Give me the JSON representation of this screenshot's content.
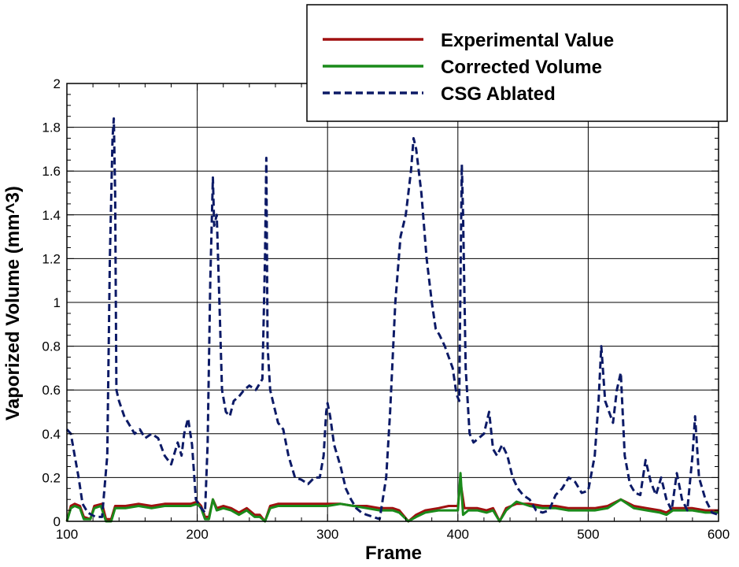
{
  "chart_data": {
    "type": "line",
    "title": "",
    "xlabel": "Frame",
    "ylabel": "Vaporized Volume (mm^3)",
    "xlim": [
      100,
      600
    ],
    "ylim": [
      0,
      2
    ],
    "xticks": [
      100,
      200,
      300,
      400,
      500,
      600
    ],
    "yticks": [
      0,
      0.2,
      0.4,
      0.6,
      0.8,
      1,
      1.2,
      1.4,
      1.6,
      1.8,
      2
    ],
    "xtick_labels": [
      "100",
      "200",
      "300",
      "400",
      "500",
      "600"
    ],
    "ytick_labels": [
      "0",
      "0.2",
      "0.4",
      "0.6",
      "0.8",
      "1",
      "1.2",
      "1.4",
      "1.6",
      "1.8",
      "2"
    ],
    "grid": {
      "x": true,
      "y": true
    },
    "legend_position": "top-right",
    "series": [
      {
        "name": "Experimental Value",
        "color": "#a01010",
        "style": "solid",
        "points": [
          [
            100,
            0
          ],
          [
            103,
            0.07
          ],
          [
            106,
            0.08
          ],
          [
            110,
            0.07
          ],
          [
            113,
            0.02
          ],
          [
            118,
            0.01
          ],
          [
            121,
            0.07
          ],
          [
            127,
            0.08
          ],
          [
            130,
            0.01
          ],
          [
            134,
            0.01
          ],
          [
            137,
            0.07
          ],
          [
            145,
            0.07
          ],
          [
            155,
            0.08
          ],
          [
            165,
            0.07
          ],
          [
            175,
            0.08
          ],
          [
            185,
            0.08
          ],
          [
            195,
            0.08
          ],
          [
            200,
            0.09
          ],
          [
            203,
            0.07
          ],
          [
            206,
            0.02
          ],
          [
            209,
            0.02
          ],
          [
            212,
            0.1
          ],
          [
            215,
            0.06
          ],
          [
            220,
            0.07
          ],
          [
            226,
            0.06
          ],
          [
            232,
            0.04
          ],
          [
            238,
            0.06
          ],
          [
            244,
            0.03
          ],
          [
            248,
            0.03
          ],
          [
            252,
            0.0
          ],
          [
            256,
            0.07
          ],
          [
            262,
            0.08
          ],
          [
            275,
            0.08
          ],
          [
            290,
            0.08
          ],
          [
            300,
            0.08
          ],
          [
            310,
            0.08
          ],
          [
            320,
            0.07
          ],
          [
            330,
            0.07
          ],
          [
            340,
            0.06
          ],
          [
            350,
            0.06
          ],
          [
            355,
            0.05
          ],
          [
            362,
            0.0
          ],
          [
            368,
            0.03
          ],
          [
            375,
            0.05
          ],
          [
            385,
            0.06
          ],
          [
            393,
            0.07
          ],
          [
            400,
            0.07
          ],
          [
            402,
            0.18
          ],
          [
            405,
            0.06
          ],
          [
            415,
            0.06
          ],
          [
            422,
            0.05
          ],
          [
            427,
            0.06
          ],
          [
            432,
            0.0
          ],
          [
            437,
            0.06
          ],
          [
            445,
            0.08
          ],
          [
            455,
            0.08
          ],
          [
            465,
            0.07
          ],
          [
            475,
            0.07
          ],
          [
            485,
            0.06
          ],
          [
            495,
            0.06
          ],
          [
            505,
            0.06
          ],
          [
            515,
            0.07
          ],
          [
            525,
            0.1
          ],
          [
            535,
            0.07
          ],
          [
            545,
            0.06
          ],
          [
            555,
            0.05
          ],
          [
            560,
            0.04
          ],
          [
            565,
            0.06
          ],
          [
            580,
            0.06
          ],
          [
            590,
            0.05
          ],
          [
            600,
            0.05
          ]
        ]
      },
      {
        "name": "Corrected Volume",
        "color": "#1a8a1a",
        "style": "solid",
        "points": [
          [
            100,
            0
          ],
          [
            103,
            0.06
          ],
          [
            106,
            0.07
          ],
          [
            110,
            0.06
          ],
          [
            113,
            0.01
          ],
          [
            118,
            0.01
          ],
          [
            121,
            0.06
          ],
          [
            126,
            0.07
          ],
          [
            130,
            0.0
          ],
          [
            134,
            0.0
          ],
          [
            137,
            0.06
          ],
          [
            145,
            0.06
          ],
          [
            155,
            0.07
          ],
          [
            165,
            0.06
          ],
          [
            175,
            0.07
          ],
          [
            185,
            0.07
          ],
          [
            195,
            0.07
          ],
          [
            200,
            0.08
          ],
          [
            203,
            0.06
          ],
          [
            206,
            0.01
          ],
          [
            209,
            0.01
          ],
          [
            212,
            0.1
          ],
          [
            215,
            0.05
          ],
          [
            220,
            0.06
          ],
          [
            226,
            0.05
          ],
          [
            232,
            0.03
          ],
          [
            238,
            0.05
          ],
          [
            244,
            0.02
          ],
          [
            248,
            0.02
          ],
          [
            252,
            0.0
          ],
          [
            256,
            0.06
          ],
          [
            262,
            0.07
          ],
          [
            275,
            0.07
          ],
          [
            290,
            0.07
          ],
          [
            300,
            0.07
          ],
          [
            310,
            0.08
          ],
          [
            320,
            0.07
          ],
          [
            330,
            0.06
          ],
          [
            340,
            0.05
          ],
          [
            350,
            0.05
          ],
          [
            355,
            0.04
          ],
          [
            362,
            0.0
          ],
          [
            368,
            0.02
          ],
          [
            375,
            0.04
          ],
          [
            385,
            0.05
          ],
          [
            393,
            0.05
          ],
          [
            400,
            0.05
          ],
          [
            402,
            0.22
          ],
          [
            404,
            0.03
          ],
          [
            408,
            0.05
          ],
          [
            415,
            0.05
          ],
          [
            422,
            0.04
          ],
          [
            427,
            0.05
          ],
          [
            432,
            0.0
          ],
          [
            437,
            0.05
          ],
          [
            445,
            0.09
          ],
          [
            455,
            0.07
          ],
          [
            465,
            0.06
          ],
          [
            475,
            0.06
          ],
          [
            485,
            0.05
          ],
          [
            495,
            0.05
          ],
          [
            505,
            0.05
          ],
          [
            515,
            0.06
          ],
          [
            525,
            0.1
          ],
          [
            535,
            0.06
          ],
          [
            545,
            0.05
          ],
          [
            555,
            0.04
          ],
          [
            560,
            0.03
          ],
          [
            565,
            0.05
          ],
          [
            580,
            0.05
          ],
          [
            590,
            0.04
          ],
          [
            600,
            0.04
          ]
        ]
      },
      {
        "name": "CSG Ablated",
        "color": "#0c1a66",
        "style": "dashed",
        "points": [
          [
            100,
            0.42
          ],
          [
            103,
            0.4
          ],
          [
            106,
            0.3
          ],
          [
            109,
            0.2
          ],
          [
            112,
            0.08
          ],
          [
            116,
            0.04
          ],
          [
            122,
            0.02
          ],
          [
            127,
            0.02
          ],
          [
            131,
            0.3
          ],
          [
            133,
            1.2
          ],
          [
            135,
            1.75
          ],
          [
            136,
            1.84
          ],
          [
            137,
            1.5
          ],
          [
            138,
            0.6
          ],
          [
            140,
            0.55
          ],
          [
            144,
            0.48
          ],
          [
            148,
            0.44
          ],
          [
            152,
            0.4
          ],
          [
            156,
            0.42
          ],
          [
            160,
            0.38
          ],
          [
            165,
            0.4
          ],
          [
            170,
            0.38
          ],
          [
            175,
            0.3
          ],
          [
            180,
            0.26
          ],
          [
            185,
            0.36
          ],
          [
            188,
            0.3
          ],
          [
            190,
            0.4
          ],
          [
            193,
            0.47
          ],
          [
            196,
            0.35
          ],
          [
            199,
            0.1
          ],
          [
            203,
            0.06
          ],
          [
            206,
            0.04
          ],
          [
            208,
            0.35
          ],
          [
            210,
            1.1
          ],
          [
            212,
            1.57
          ],
          [
            213,
            1.35
          ],
          [
            215,
            1.4
          ],
          [
            217,
            1.0
          ],
          [
            219,
            0.6
          ],
          [
            222,
            0.5
          ],
          [
            225,
            0.48
          ],
          [
            228,
            0.55
          ],
          [
            232,
            0.57
          ],
          [
            236,
            0.6
          ],
          [
            240,
            0.62
          ],
          [
            245,
            0.6
          ],
          [
            250,
            0.65
          ],
          [
            252,
            1.2
          ],
          [
            253,
            1.66
          ],
          [
            254,
            0.8
          ],
          [
            256,
            0.6
          ],
          [
            258,
            0.55
          ],
          [
            262,
            0.45
          ],
          [
            266,
            0.42
          ],
          [
            270,
            0.3
          ],
          [
            275,
            0.2
          ],
          [
            280,
            0.19
          ],
          [
            285,
            0.17
          ],
          [
            290,
            0.2
          ],
          [
            294,
            0.2
          ],
          [
            297,
            0.3
          ],
          [
            299,
            0.5
          ],
          [
            300,
            0.54
          ],
          [
            302,
            0.48
          ],
          [
            305,
            0.35
          ],
          [
            310,
            0.25
          ],
          [
            314,
            0.15
          ],
          [
            318,
            0.1
          ],
          [
            322,
            0.06
          ],
          [
            326,
            0.04
          ],
          [
            330,
            0.03
          ],
          [
            335,
            0.02
          ],
          [
            340,
            0.01
          ],
          [
            345,
            0.2
          ],
          [
            348,
            0.5
          ],
          [
            352,
            1.0
          ],
          [
            356,
            1.3
          ],
          [
            360,
            1.4
          ],
          [
            364,
            1.6
          ],
          [
            366,
            1.75
          ],
          [
            368,
            1.7
          ],
          [
            372,
            1.5
          ],
          [
            376,
            1.2
          ],
          [
            380,
            1.0
          ],
          [
            383,
            0.88
          ],
          [
            386,
            0.85
          ],
          [
            390,
            0.8
          ],
          [
            393,
            0.75
          ],
          [
            396,
            0.7
          ],
          [
            399,
            0.58
          ],
          [
            401,
            0.55
          ],
          [
            402,
            1.1
          ],
          [
            403,
            1.63
          ],
          [
            404,
            1.4
          ],
          [
            406,
            0.7
          ],
          [
            409,
            0.4
          ],
          [
            412,
            0.36
          ],
          [
            416,
            0.38
          ],
          [
            420,
            0.4
          ],
          [
            424,
            0.5
          ],
          [
            427,
            0.33
          ],
          [
            430,
            0.3
          ],
          [
            434,
            0.35
          ],
          [
            438,
            0.3
          ],
          [
            442,
            0.2
          ],
          [
            446,
            0.15
          ],
          [
            450,
            0.12
          ],
          [
            455,
            0.1
          ],
          [
            460,
            0.05
          ],
          [
            465,
            0.04
          ],
          [
            470,
            0.05
          ],
          [
            475,
            0.12
          ],
          [
            480,
            0.15
          ],
          [
            485,
            0.2
          ],
          [
            490,
            0.18
          ],
          [
            495,
            0.13
          ],
          [
            500,
            0.14
          ],
          [
            505,
            0.3
          ],
          [
            508,
            0.55
          ],
          [
            510,
            0.8
          ],
          [
            513,
            0.55
          ],
          [
            516,
            0.5
          ],
          [
            519,
            0.45
          ],
          [
            522,
            0.6
          ],
          [
            525,
            0.68
          ],
          [
            528,
            0.3
          ],
          [
            532,
            0.17
          ],
          [
            536,
            0.13
          ],
          [
            540,
            0.12
          ],
          [
            544,
            0.28
          ],
          [
            548,
            0.18
          ],
          [
            552,
            0.12
          ],
          [
            556,
            0.2
          ],
          [
            560,
            0.1
          ],
          [
            564,
            0.05
          ],
          [
            568,
            0.22
          ],
          [
            572,
            0.1
          ],
          [
            576,
            0.05
          ],
          [
            580,
            0.3
          ],
          [
            582,
            0.48
          ],
          [
            585,
            0.2
          ],
          [
            590,
            0.1
          ],
          [
            595,
            0.04
          ],
          [
            600,
            0.03
          ]
        ]
      }
    ]
  }
}
